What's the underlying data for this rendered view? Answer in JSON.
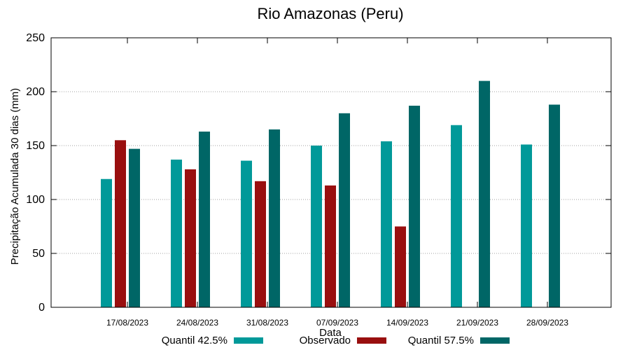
{
  "chart_data": {
    "type": "bar",
    "title": "Rio Amazonas (Peru)",
    "xlabel": "Data",
    "ylabel": "Precipitação Acumulada 30 dias (mm)",
    "ylim": [
      0,
      250
    ],
    "yticks": [
      0,
      50,
      100,
      150,
      200,
      250
    ],
    "grid": true,
    "legend_position": "bottom",
    "categories": [
      "17/08/2023",
      "24/08/2023",
      "31/08/2023",
      "07/09/2023",
      "14/09/2023",
      "21/09/2023",
      "28/09/2023"
    ],
    "series": [
      {
        "name": "Quantil 42.5%",
        "color": "#009999",
        "values": [
          119,
          137,
          136,
          150,
          154,
          169,
          151
        ]
      },
      {
        "name": "Observado",
        "color": "#990f0f",
        "values": [
          155,
          128,
          117,
          113,
          75,
          null,
          null
        ]
      },
      {
        "name": "Quantil 57.5%",
        "color": "#006666",
        "values": [
          147,
          163,
          165,
          180,
          187,
          210,
          188
        ]
      }
    ]
  }
}
